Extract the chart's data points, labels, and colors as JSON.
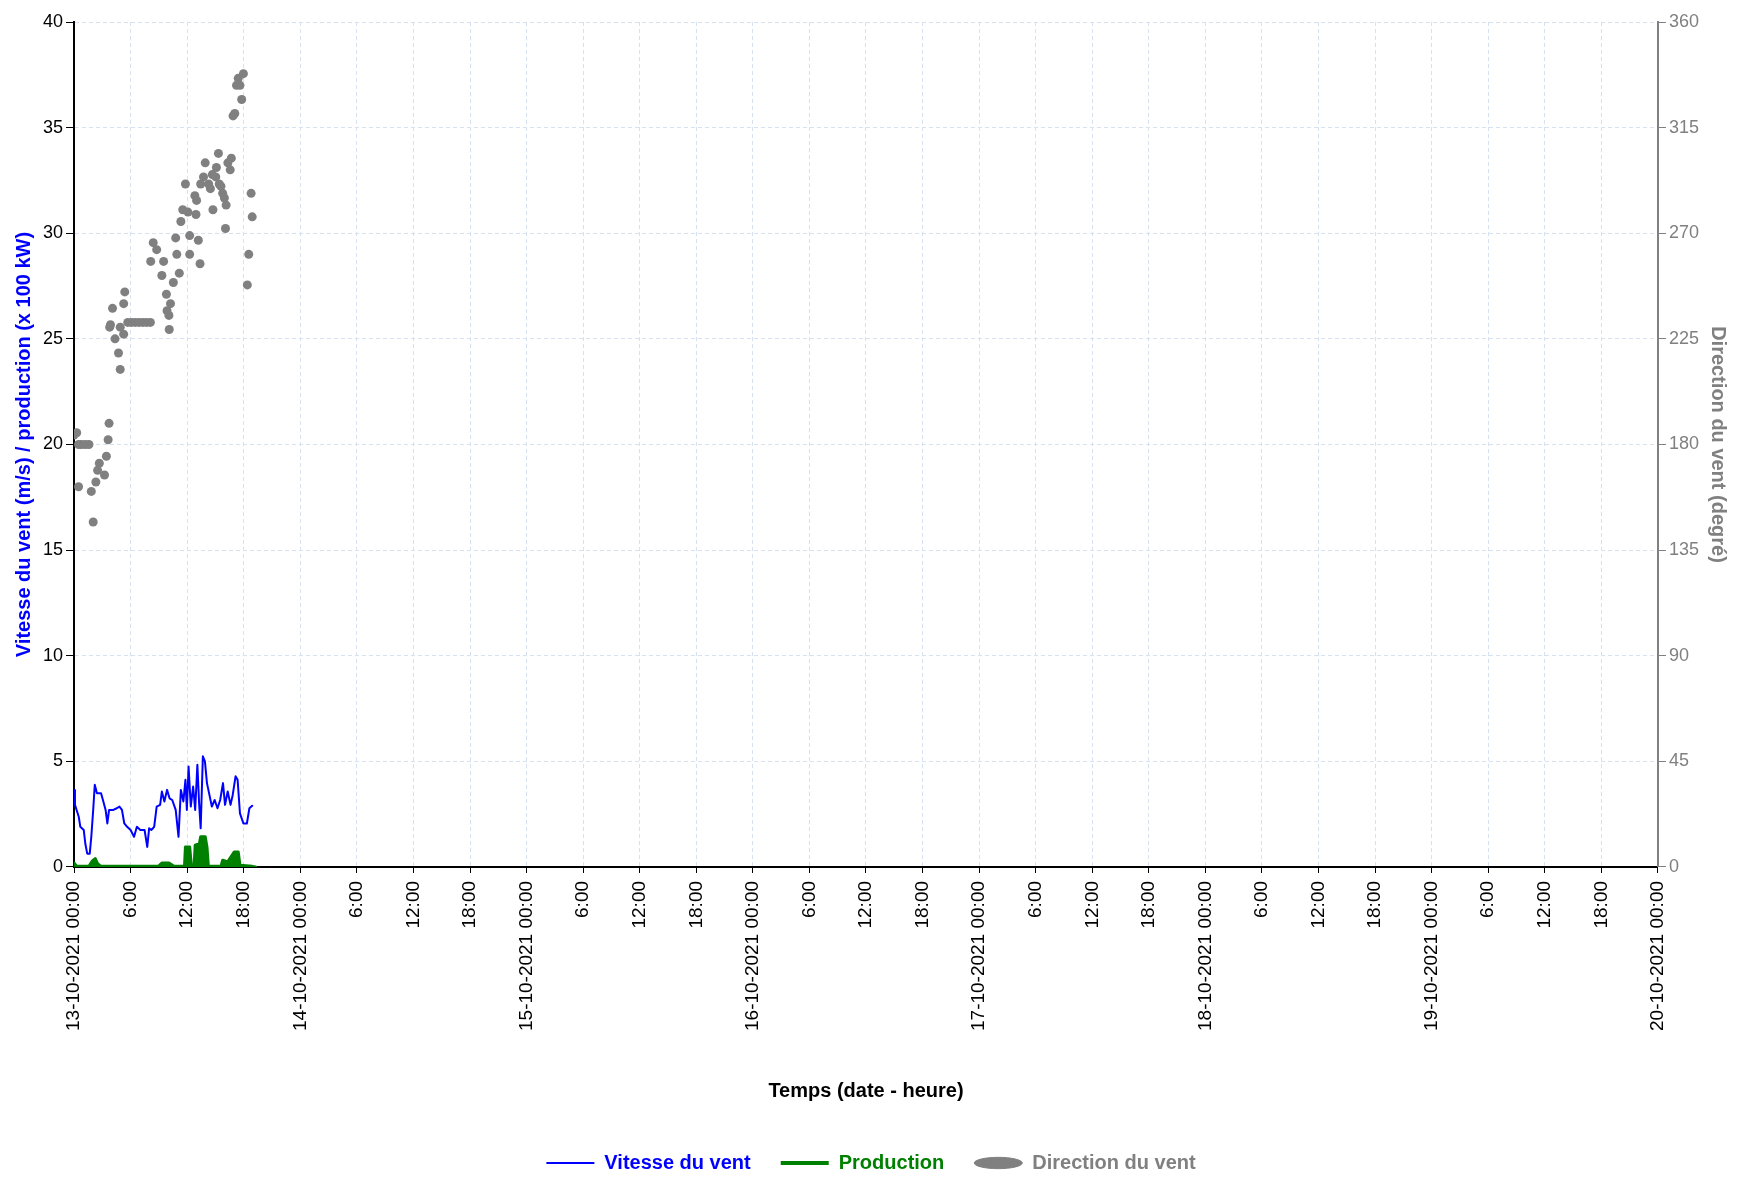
{
  "chart_data": {
    "type": "line",
    "xlabel": "Temps (date - heure)",
    "ylabel": "Vitesse du vent (m/s) / production (x 100 kW)",
    "y2label": "Direction du vent (degré)",
    "xlim": [
      "2021-10-13T00:00",
      "2021-10-20T00:00"
    ],
    "xticks": [
      {
        "value": "2021-10-13T00:00",
        "label": "13-10-2021 00:00"
      },
      {
        "value": "2021-10-13T06:00",
        "label": "6:00"
      },
      {
        "value": "2021-10-13T12:00",
        "label": "12:00"
      },
      {
        "value": "2021-10-13T18:00",
        "label": "18:00"
      },
      {
        "value": "2021-10-14T00:00",
        "label": "14-10-2021 00:00"
      },
      {
        "value": "2021-10-14T06:00",
        "label": "6:00"
      },
      {
        "value": "2021-10-14T12:00",
        "label": "12:00"
      },
      {
        "value": "2021-10-14T18:00",
        "label": "18:00"
      },
      {
        "value": "2021-10-15T00:00",
        "label": "15-10-2021 00:00"
      },
      {
        "value": "2021-10-15T06:00",
        "label": "6:00"
      },
      {
        "value": "2021-10-15T12:00",
        "label": "12:00"
      },
      {
        "value": "2021-10-15T18:00",
        "label": "18:00"
      },
      {
        "value": "2021-10-16T00:00",
        "label": "16-10-2021 00:00"
      },
      {
        "value": "2021-10-16T06:00",
        "label": "6:00"
      },
      {
        "value": "2021-10-16T12:00",
        "label": "12:00"
      },
      {
        "value": "2021-10-16T18:00",
        "label": "18:00"
      },
      {
        "value": "2021-10-17T00:00",
        "label": "17-10-2021 00:00"
      },
      {
        "value": "2021-10-17T06:00",
        "label": "6:00"
      },
      {
        "value": "2021-10-17T12:00",
        "label": "12:00"
      },
      {
        "value": "2021-10-17T18:00",
        "label": "18:00"
      },
      {
        "value": "2021-10-18T00:00",
        "label": "18-10-2021 00:00"
      },
      {
        "value": "2021-10-18T06:00",
        "label": "6:00"
      },
      {
        "value": "2021-10-18T12:00",
        "label": "12:00"
      },
      {
        "value": "2021-10-18T18:00",
        "label": "18:00"
      },
      {
        "value": "2021-10-19T00:00",
        "label": "19-10-2021 00:00"
      },
      {
        "value": "2021-10-19T06:00",
        "label": "6:00"
      },
      {
        "value": "2021-10-19T12:00",
        "label": "12:00"
      },
      {
        "value": "2021-10-19T18:00",
        "label": "18:00"
      },
      {
        "value": "2021-10-20T00:00",
        "label": "20-10-2021 00:00"
      }
    ],
    "ylim": [
      0,
      40
    ],
    "yticks": [
      0,
      5,
      10,
      15,
      20,
      25,
      30,
      35,
      40
    ],
    "y2lim": [
      0,
      360
    ],
    "y2ticks": [
      0,
      45,
      90,
      135,
      180,
      225,
      270,
      315,
      360
    ],
    "grid": true,
    "legend": "bottom",
    "series": [
      {
        "name": "Vitesse du vent",
        "color": "#0000ff",
        "marker": "none",
        "x": [
          "2021-10-13T00:00",
          "2021-10-13T00:06",
          "2021-10-13T00:30",
          "2021-10-13T00:40",
          "2021-10-13T01:02",
          "2021-10-13T01:12",
          "2021-10-13T01:24",
          "2021-10-13T01:40",
          "2021-10-13T01:50",
          "2021-10-13T02:02",
          "2021-10-13T02:12",
          "2021-10-13T02:26",
          "2021-10-13T02:52",
          "2021-10-13T03:04",
          "2021-10-13T03:21",
          "2021-10-13T03:32",
          "2021-10-13T03:43",
          "2021-10-13T04:10",
          "2021-10-13T04:32",
          "2021-10-13T04:49",
          "2021-10-13T05:05",
          "2021-10-13T05:20",
          "2021-10-13T05:38",
          "2021-10-13T06:00",
          "2021-10-13T06:22",
          "2021-10-13T06:40",
          "2021-10-13T07:02",
          "2021-10-13T07:29",
          "2021-10-13T07:46",
          "2021-10-13T07:58",
          "2021-10-13T08:12",
          "2021-10-13T08:30",
          "2021-10-13T08:46",
          "2021-10-13T09:08",
          "2021-10-13T09:19",
          "2021-10-13T09:35",
          "2021-10-13T09:52",
          "2021-10-13T10:08",
          "2021-10-13T10:25",
          "2021-10-13T10:47",
          "2021-10-13T11:05",
          "2021-10-13T11:20",
          "2021-10-13T11:36",
          "2021-10-13T11:49",
          "2021-10-13T11:58",
          "2021-10-13T12:09",
          "2021-10-13T12:23",
          "2021-10-13T12:38",
          "2021-10-13T12:51",
          "2021-10-13T13:05",
          "2021-10-13T13:16",
          "2021-10-13T13:26",
          "2021-10-13T13:40",
          "2021-10-13T13:53",
          "2021-10-13T14:06",
          "2021-10-13T14:24",
          "2021-10-13T14:37",
          "2021-10-13T14:55",
          "2021-10-13T15:13",
          "2021-10-13T15:30",
          "2021-10-13T15:48",
          "2021-10-13T16:01",
          "2021-10-13T16:18",
          "2021-10-13T16:36",
          "2021-10-13T16:50",
          "2021-10-13T17:08",
          "2021-10-13T17:21",
          "2021-10-13T17:36",
          "2021-10-13T17:58",
          "2021-10-13T18:20",
          "2021-10-13T18:36",
          "2021-10-13T18:54"
        ],
        "values": [
          3.65,
          2.94,
          2.38,
          1.9,
          1.75,
          1.1,
          0.63,
          0.63,
          1.43,
          2.7,
          3.89,
          3.49,
          3.49,
          3.17,
          2.7,
          2.06,
          2.7,
          2.7,
          2.78,
          2.86,
          2.7,
          2.06,
          1.9,
          1.75,
          1.43,
          1.9,
          1.75,
          1.75,
          0.95,
          1.83,
          1.75,
          1.9,
          2.86,
          2.94,
          3.57,
          3.1,
          3.65,
          3.25,
          3.17,
          2.7,
          1.43,
          3.65,
          3.1,
          4.13,
          2.7,
          4.76,
          2.86,
          3.81,
          2.7,
          4.84,
          3.02,
          1.83,
          5.24,
          5.0,
          3.97,
          3.33,
          2.86,
          3.17,
          2.78,
          3.17,
          3.97,
          2.94,
          3.57,
          2.94,
          3.41,
          4.29,
          4.13,
          2.54,
          2.06,
          2.06,
          2.78,
          2.9
        ]
      },
      {
        "name": "Production",
        "type": "area",
        "color": "#008000",
        "marker": "none",
        "x": [
          "2021-10-13T00:00",
          "2021-10-13T00:18",
          "2021-10-13T01:35",
          "2021-10-13T01:57",
          "2021-10-13T02:15",
          "2021-10-13T02:30",
          "2021-10-13T02:52",
          "2021-10-13T08:57",
          "2021-10-13T09:19",
          "2021-10-13T10:04",
          "2021-10-13T10:36",
          "2021-10-13T11:43",
          "2021-10-13T11:49",
          "2021-10-13T12:16",
          "2021-10-13T12:27",
          "2021-10-13T12:44",
          "2021-10-13T12:51",
          "2021-10-13T13:18",
          "2021-10-13T13:26",
          "2021-10-13T13:55",
          "2021-10-13T14:06",
          "2021-10-13T14:15",
          "2021-10-13T15:35",
          "2021-10-13T15:46",
          "2021-10-13T16:18",
          "2021-10-13T16:59",
          "2021-10-13T17:25",
          "2021-10-13T17:36",
          "2021-10-13T18:54",
          "2021-10-13T19:16"
        ],
        "values": [
          0.19,
          0.03,
          0.03,
          0.29,
          0.4,
          0.16,
          0.03,
          0.03,
          0.19,
          0.19,
          0.03,
          0.03,
          0.95,
          0.95,
          0.03,
          0.03,
          1.03,
          1.11,
          1.43,
          1.43,
          0.95,
          0.03,
          0.03,
          0.32,
          0.24,
          0.71,
          0.71,
          0.08,
          0.03,
          0
        ]
      },
      {
        "name": "Direction du vent",
        "type": "scatter",
        "axis": "y2",
        "color": "#808080",
        "marker": "circle",
        "x": [
          "2021-10-13T17:58",
          "2021-10-13T17:25",
          "2021-10-13T17:14",
          "2021-10-13T17:36",
          "2021-10-13T17:47",
          "2021-10-13T17:03",
          "2021-10-13T16:52",
          "2021-10-13T15:19",
          "2021-10-13T16:41",
          "2021-10-13T13:55",
          "2021-10-13T16:19",
          "2021-10-13T15:06",
          "2021-10-13T16:34",
          "2021-10-13T13:44",
          "2021-10-13T14:40",
          "2021-10-13T15:02",
          "2021-10-13T11:49",
          "2021-10-13T13:26",
          "2021-10-13T14:17",
          "2021-10-13T15:24",
          "2021-10-13T14:28",
          "2021-10-13T15:35",
          "2021-10-13T15:46",
          "2021-10-13T18:47",
          "2021-10-13T12:49",
          "2021-10-13T15:57",
          "2021-10-13T13:00",
          "2021-10-13T16:08",
          "2021-10-13T14:44",
          "2021-10-13T11:32",
          "2021-10-13T12:05",
          "2021-10-13T12:56",
          "2021-10-13T18:54",
          "2021-10-13T11:20",
          "2021-10-13T16:04",
          "2021-10-13T12:16",
          "2021-10-13T10:47",
          "2021-10-13T13:11",
          "2021-10-13T08:24",
          "2021-10-13T08:46",
          "2021-10-13T18:32",
          "2021-10-13T10:54",
          "2021-10-13T12:16",
          "2021-10-13T08:08",
          "2021-10-13T09:30",
          "2021-10-13T13:22",
          "2021-10-13T09:19",
          "2021-10-13T11:10",
          "2021-10-13T10:32",
          "2021-10-13T18:23",
          "2021-10-13T05:23",
          "2021-10-13T09:48",
          "2021-10-13T05:16",
          "2021-10-13T10:14",
          "2021-10-13T04:05",
          "2021-10-13T09:52",
          "2021-10-13T10:04",
          "2021-10-13T05:42",
          "2021-10-13T06:06",
          "2021-10-13T06:30",
          "2021-10-13T06:54",
          "2021-10-13T07:18",
          "2021-10-13T07:42",
          "2021-10-13T08:06",
          "2021-10-13T03:52",
          "2021-10-13T04:54",
          "2021-10-13T10:06",
          "2021-10-13T03:47",
          "2021-10-13T04:21",
          "2021-10-13T05:16",
          "2021-10-13T04:43",
          "2021-10-13T04:54",
          "2021-10-13T03:43",
          "2021-10-13T00:17",
          "2021-10-13T00:00",
          "2021-10-13T00:29",
          "2021-10-13T00:48",
          "2021-10-13T01:12",
          "2021-10-13T01:35",
          "2021-10-13T03:37",
          "2021-10-13T03:26",
          "2021-10-13T02:41",
          "2021-10-13T02:30",
          "2021-10-13T03:14",
          "2021-10-13T02:19",
          "2021-10-13T00:29",
          "2021-10-13T01:50",
          "2021-10-13T02:02"
        ],
        "values": [
          338,
          336,
          333,
          333,
          327,
          321,
          320,
          304,
          302,
          300,
          300,
          298,
          297,
          294,
          295,
          294,
          291,
          291,
          291,
          291,
          289,
          290,
          287,
          287,
          286,
          285,
          284,
          282,
          280,
          280,
          279,
          278,
          277,
          275,
          272,
          269,
          268,
          267,
          266,
          263,
          261,
          261,
          261,
          258,
          258,
          257,
          252,
          253,
          249,
          248,
          245,
          244,
          240,
          240,
          238,
          237,
          235,
          232,
          232,
          232,
          232,
          232,
          232,
          232,
          231,
          230,
          229,
          230,
          225,
          227,
          219,
          212,
          189,
          185,
          184,
          180,
          180,
          180,
          180,
          182,
          175,
          172,
          169,
          167,
          164,
          162,
          160,
          147
        ]
      }
    ]
  }
}
